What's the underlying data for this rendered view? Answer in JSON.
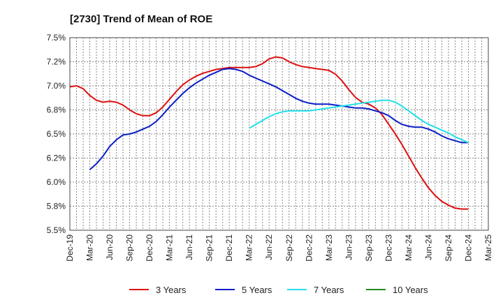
{
  "chart_data": {
    "type": "line",
    "title": "[2730]  Trend of Mean of ROE",
    "xlabel": "",
    "ylabel": "",
    "x_ticks": [
      "Dec-19",
      "Mar-20",
      "Jun-20",
      "Sep-20",
      "Dec-20",
      "Mar-21",
      "Jun-21",
      "Sep-21",
      "Dec-21",
      "Mar-22",
      "Jun-22",
      "Sep-22",
      "Dec-22",
      "Mar-23",
      "Jun-23",
      "Sep-23",
      "Dec-23",
      "Mar-24",
      "Jun-24",
      "Sep-24",
      "Dec-24",
      "Mar-25"
    ],
    "y_ticks": [
      "5.5%",
      "5.8%",
      "6.0%",
      "6.2%",
      "6.5%",
      "6.8%",
      "7.0%",
      "7.2%",
      "7.5%"
    ],
    "y_tick_values": [
      5.5,
      5.75,
      6.0,
      6.25,
      6.5,
      6.75,
      7.0,
      7.25,
      7.5
    ],
    "ylim": [
      5.5,
      7.5
    ],
    "grid": true,
    "legend_position": "bottom",
    "series": [
      {
        "name": "3 Years",
        "color": "#dd1111",
        "x": [
          "2019-12",
          "2020-01",
          "2020-02",
          "2020-03",
          "2020-04",
          "2020-05",
          "2020-06",
          "2020-07",
          "2020-08",
          "2020-09",
          "2020-10",
          "2020-11",
          "2020-12",
          "2021-01",
          "2021-02",
          "2021-03",
          "2021-04",
          "2021-05",
          "2021-06",
          "2021-07",
          "2021-08",
          "2021-09",
          "2021-10",
          "2021-11",
          "2021-12",
          "2022-01",
          "2022-02",
          "2022-03",
          "2022-04",
          "2022-05",
          "2022-06",
          "2022-07",
          "2022-08",
          "2022-09",
          "2022-10",
          "2022-11",
          "2022-12",
          "2023-01",
          "2023-02",
          "2023-03",
          "2023-04",
          "2023-05",
          "2023-06",
          "2023-07",
          "2023-08",
          "2023-09",
          "2023-10",
          "2023-11",
          "2023-12",
          "2024-01",
          "2024-02",
          "2024-03",
          "2024-04",
          "2024-05",
          "2024-06",
          "2024-07",
          "2024-08",
          "2024-09",
          "2024-10",
          "2024-11",
          "2024-12"
        ],
        "values": [
          6.99,
          7.0,
          6.97,
          6.9,
          6.85,
          6.83,
          6.84,
          6.83,
          6.8,
          6.75,
          6.71,
          6.69,
          6.69,
          6.72,
          6.78,
          6.86,
          6.94,
          7.01,
          7.06,
          7.1,
          7.13,
          7.15,
          7.17,
          7.18,
          7.19,
          7.19,
          7.19,
          7.19,
          7.2,
          7.23,
          7.28,
          7.3,
          7.29,
          7.25,
          7.22,
          7.2,
          7.19,
          7.18,
          7.17,
          7.16,
          7.12,
          7.05,
          6.96,
          6.88,
          6.83,
          6.81,
          6.77,
          6.7,
          6.6,
          6.5,
          6.39,
          6.27,
          6.15,
          6.04,
          5.94,
          5.86,
          5.8,
          5.76,
          5.73,
          5.72,
          5.72
        ]
      },
      {
        "name": "5 Years",
        "color": "#0a1ec8",
        "x": [
          "2020-03",
          "2020-04",
          "2020-05",
          "2020-06",
          "2020-07",
          "2020-08",
          "2020-09",
          "2020-10",
          "2020-11",
          "2020-12",
          "2021-01",
          "2021-02",
          "2021-03",
          "2021-04",
          "2021-05",
          "2021-06",
          "2021-07",
          "2021-08",
          "2021-09",
          "2021-10",
          "2021-11",
          "2021-12",
          "2022-01",
          "2022-02",
          "2022-03",
          "2022-04",
          "2022-05",
          "2022-06",
          "2022-07",
          "2022-08",
          "2022-09",
          "2022-10",
          "2022-11",
          "2022-12",
          "2023-01",
          "2023-02",
          "2023-03",
          "2023-04",
          "2023-05",
          "2023-06",
          "2023-07",
          "2023-08",
          "2023-09",
          "2023-10",
          "2023-11",
          "2023-12",
          "2024-01",
          "2024-02",
          "2024-03",
          "2024-04",
          "2024-05",
          "2024-06",
          "2024-07",
          "2024-08",
          "2024-09",
          "2024-10",
          "2024-11",
          "2024-12"
        ],
        "values": [
          6.13,
          6.19,
          6.27,
          6.37,
          6.44,
          6.49,
          6.5,
          6.52,
          6.55,
          6.58,
          6.63,
          6.7,
          6.78,
          6.85,
          6.92,
          6.98,
          7.03,
          7.07,
          7.11,
          7.14,
          7.17,
          7.18,
          7.17,
          7.15,
          7.11,
          7.08,
          7.05,
          7.02,
          6.99,
          6.95,
          6.91,
          6.87,
          6.84,
          6.82,
          6.81,
          6.81,
          6.81,
          6.8,
          6.79,
          6.78,
          6.77,
          6.77,
          6.76,
          6.74,
          6.72,
          6.69,
          6.64,
          6.6,
          6.58,
          6.57,
          6.57,
          6.55,
          6.52,
          6.48,
          6.45,
          6.43,
          6.41,
          6.41
        ]
      },
      {
        "name": "7 Years",
        "color": "#22e0e8",
        "x": [
          "2022-03",
          "2022-04",
          "2022-05",
          "2022-06",
          "2022-07",
          "2022-08",
          "2022-09",
          "2022-10",
          "2022-11",
          "2022-12",
          "2023-01",
          "2023-02",
          "2023-03",
          "2023-04",
          "2023-05",
          "2023-06",
          "2023-07",
          "2023-08",
          "2023-09",
          "2023-10",
          "2023-11",
          "2023-12",
          "2024-01",
          "2024-02",
          "2024-03",
          "2024-04",
          "2024-05",
          "2024-06",
          "2024-07",
          "2024-08",
          "2024-09",
          "2024-10",
          "2024-11",
          "2024-12"
        ],
        "values": [
          6.56,
          6.6,
          6.64,
          6.68,
          6.71,
          6.73,
          6.74,
          6.74,
          6.74,
          6.74,
          6.75,
          6.76,
          6.77,
          6.78,
          6.79,
          6.8,
          6.81,
          6.82,
          6.83,
          6.84,
          6.85,
          6.85,
          6.83,
          6.79,
          6.74,
          6.69,
          6.64,
          6.6,
          6.57,
          6.54,
          6.51,
          6.47,
          6.44,
          6.41
        ]
      },
      {
        "name": "10 Years",
        "color": "#228b22",
        "x": [],
        "values": []
      }
    ]
  }
}
